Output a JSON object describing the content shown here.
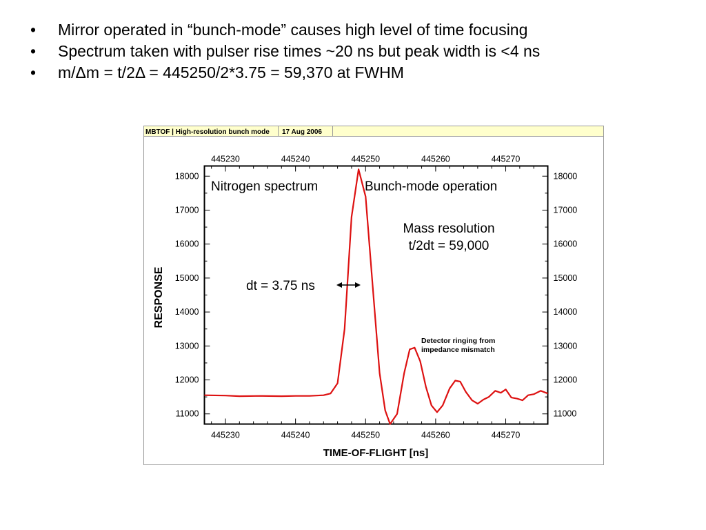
{
  "bullets": [
    "Mirror operated in “bunch-mode” causes high level of time focusing",
    "Spectrum taken with pulser rise times ~20 ns but peak width is <4 ns",
    "m/Δm = t/2Δ = 445250/2*3.75 = 59,370 at FWHM"
  ],
  "bullet_char": "•",
  "colors": {
    "trace": "#dd1111",
    "header_bg": "#ffffcc",
    "frame": "#999999"
  },
  "figure": {
    "header_title": "MBTOF | High-resolution bunch mode",
    "header_date": "17 Aug 2006"
  },
  "chart_data": {
    "type": "line",
    "title": "",
    "xlabel": "TIME-OF-FLIGHT [ns]",
    "ylabel": "RESPONSE",
    "xlim": [
      445227,
      445276
    ],
    "ylim": [
      10700,
      18300
    ],
    "x_ticks": [
      445230,
      445240,
      445250,
      445260,
      445270
    ],
    "y_ticks": [
      11000,
      12000,
      13000,
      14000,
      15000,
      16000,
      17000,
      18000
    ],
    "annotations": {
      "nitrogen": "Nitrogen spectrum",
      "bunch": "Bunch-mode operation",
      "res1": "Mass resolution",
      "res2": "t/2dt = 59,000",
      "dt": "dt = 3.75 ns",
      "ring1": "Detector ringing from",
      "ring2": "impedance mismatch"
    },
    "series": [
      {
        "x": [
          445227,
          445230,
          445232,
          445235,
          445238,
          445240,
          445242,
          445244,
          445245,
          445246,
          445247,
          445248,
          445249,
          445250,
          445251,
          445252,
          445252.8,
          445253.5,
          445254.5,
          445255.5,
          445256.3,
          445257,
          445257.8,
          445258.6,
          445259.4,
          445260.2,
          445261,
          445262,
          445262.8,
          445263.5,
          445264.3,
          445265.2,
          445266,
          445266.8,
          445267.6,
          445268.5,
          445269.3,
          445270,
          445270.8,
          445271.6,
          445272.4,
          445273.2,
          445274,
          445275,
          445276
        ],
        "y": [
          11550,
          11540,
          11520,
          11530,
          11520,
          11530,
          11530,
          11550,
          11600,
          11900,
          13500,
          16800,
          18200,
          17400,
          14800,
          12200,
          11100,
          10700,
          11000,
          12200,
          12900,
          12950,
          12550,
          11800,
          11250,
          11050,
          11250,
          11750,
          11980,
          11950,
          11650,
          11400,
          11300,
          11420,
          11500,
          11680,
          11620,
          11720,
          11480,
          11450,
          11400,
          11550,
          11580,
          11680,
          11600
        ]
      }
    ]
  }
}
